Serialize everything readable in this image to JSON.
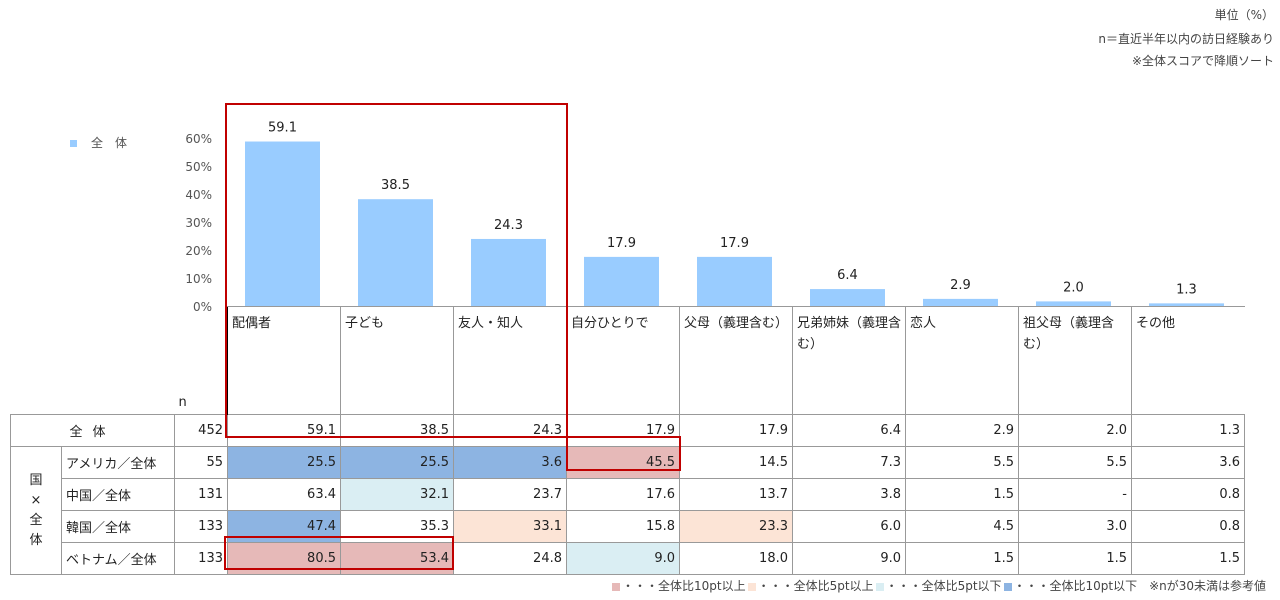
{
  "notes": {
    "unit": "単位（%）",
    "sample": "n＝直近半年以内の訪日経験あり",
    "sort": "※全体スコアで降順ソート"
  },
  "legend_label": "全　体",
  "n_label": "n",
  "chart_data": {
    "type": "bar",
    "categories": [
      "配偶者",
      "子ども",
      "友人・知人",
      "自分ひとりで",
      "父母（義理含む）",
      "兄弟姉妹（義理含む）",
      "恋人",
      "祖父母（義理含む）",
      "その他"
    ],
    "series": [
      {
        "name": "全体",
        "values": [
          59.1,
          38.5,
          24.3,
          17.9,
          17.9,
          6.4,
          2.9,
          2.0,
          1.3
        ]
      }
    ],
    "ylim": [
      0,
      60
    ],
    "yticks": [
      "0%",
      "10%",
      "20%",
      "30%",
      "40%",
      "50%",
      "60%"
    ],
    "data_labels": [
      "59.1",
      "38.5",
      "24.3",
      "17.9",
      "17.9",
      "6.4",
      "2.9",
      "2.0",
      "1.3"
    ],
    "bar_color": "#99ccff",
    "grid": false
  },
  "table": {
    "group_label": "国×全体",
    "rows": [
      {
        "label": "全体",
        "n": "452",
        "values": [
          "59.1",
          "38.5",
          "24.3",
          "17.9",
          "17.9",
          "6.4",
          "2.9",
          "2.0",
          "1.3"
        ],
        "flags": [
          "",
          "",
          "",
          "",
          "",
          "",
          "",
          "",
          ""
        ]
      },
      {
        "label": "アメリカ／全体",
        "n": "55",
        "values": [
          "25.5",
          "25.5",
          "3.6",
          "45.5",
          "14.5",
          "7.3",
          "5.5",
          "5.5",
          "3.6"
        ],
        "flags": [
          "l10",
          "l10",
          "l10",
          "h10",
          "",
          "",
          "",
          "",
          ""
        ]
      },
      {
        "label": "中国／全体",
        "n": "131",
        "values": [
          "63.4",
          "32.1",
          "23.7",
          "17.6",
          "13.7",
          "3.8",
          "1.5",
          "-",
          "0.8"
        ],
        "flags": [
          "",
          "l5",
          "",
          "",
          "",
          "",
          "",
          "",
          ""
        ]
      },
      {
        "label": "韓国／全体",
        "n": "133",
        "values": [
          "47.4",
          "35.3",
          "33.1",
          "15.8",
          "23.3",
          "6.0",
          "4.5",
          "3.0",
          "0.8"
        ],
        "flags": [
          "l10",
          "",
          "h5",
          "",
          "h5",
          "",
          "",
          "",
          ""
        ]
      },
      {
        "label": "ベトナム／全体",
        "n": "133",
        "values": [
          "80.5",
          "53.4",
          "24.8",
          "9.0",
          "18.0",
          "9.0",
          "1.5",
          "1.5",
          "1.5"
        ],
        "flags": [
          "h10",
          "h10",
          "",
          "l5",
          "",
          "",
          "",
          "",
          ""
        ]
      }
    ]
  },
  "color_legend": [
    {
      "key": "h10",
      "color": "#e6b9b8",
      "label": "・・・全体比10pt以上"
    },
    {
      "key": "h5",
      "color": "#fce4d6",
      "label": "・・・全体比5pt以上"
    },
    {
      "key": "l5",
      "color": "#daeef3",
      "label": "・・・全体比5pt以下"
    },
    {
      "key": "l10",
      "color": "#8db4e2",
      "label": "・・・全体比10pt以下"
    }
  ],
  "reference_note": "※nが30未満は参考値"
}
